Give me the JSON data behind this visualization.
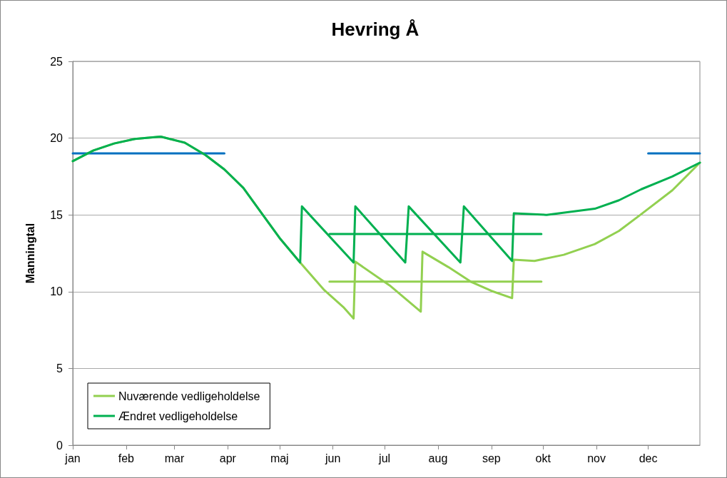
{
  "chart_data": {
    "type": "line",
    "title": "Hevring Å",
    "ylabel": "Manningtal",
    "xlim": [
      "--01-01",
      "--12-31"
    ],
    "xticks": [
      {
        "value": "--01-01",
        "label": "jan"
      },
      {
        "value": "--02-01",
        "label": "feb"
      },
      {
        "value": "--03-01",
        "label": "mar"
      },
      {
        "value": "--04-01",
        "label": "apr"
      },
      {
        "value": "--05-01",
        "label": "maj"
      },
      {
        "value": "--06-01",
        "label": "jun"
      },
      {
        "value": "--07-01",
        "label": "jul"
      },
      {
        "value": "--08-01",
        "label": "aug"
      },
      {
        "value": "--09-01",
        "label": "sep"
      },
      {
        "value": "--10-01",
        "label": "okt"
      },
      {
        "value": "--11-01",
        "label": "nov"
      },
      {
        "value": "--12-01",
        "label": "dec"
      }
    ],
    "ylim": [
      0,
      25
    ],
    "yticks": [
      0,
      5,
      10,
      15,
      20,
      25
    ],
    "grid": "y",
    "legend": "bottom left",
    "marker": "none",
    "line_style": "solid",
    "series": [
      {
        "color": "#0070c0",
        "x": [
          "--01-01",
          "--03-30"
        ],
        "values": [
          19,
          19
        ]
      },
      {
        "color": "#0070c0",
        "x": [
          "--12-01",
          "--12-31"
        ],
        "values": [
          19,
          19
        ]
      },
      {
        "color": "#92d050",
        "x": [
          "--05-30",
          "--09-30"
        ],
        "values": [
          10.65,
          10.65
        ]
      },
      {
        "color": "#00b050",
        "x": [
          "--05-30",
          "--09-30"
        ],
        "values": [
          13.75,
          13.75
        ]
      },
      {
        "name": "Nuværende vedligeholdelse",
        "color": "#92d050",
        "x": [
          "--01-01",
          "--01-13",
          "--01-25",
          "--02-06",
          "--02-21",
          "--03-07",
          "--03-19",
          "--03-30",
          "--04-10",
          "--04-21",
          "--05-01",
          "--05-13",
          "--05-27",
          "--06-07",
          "--06-13",
          "--06-14",
          "--07-04",
          "--07-22",
          "--07-23",
          "--08-07",
          "--08-20",
          "--09-01",
          "--09-13",
          "--09-14",
          "--09-26",
          "--10-13",
          "--10-31",
          "--11-14",
          "--11-27",
          "--12-15",
          "--12-31"
        ],
        "values": [
          18.5,
          19.2,
          19.65,
          19.95,
          20.1,
          19.7,
          18.9,
          17.96,
          16.76,
          15.05,
          13.5,
          11.9,
          10.1,
          9.0,
          8.25,
          11.95,
          10.4,
          8.7,
          12.6,
          11.6,
          10.65,
          10.05,
          9.58,
          12.08,
          12.0,
          12.4,
          13.1,
          13.95,
          15.05,
          16.6,
          18.4
        ]
      },
      {
        "name": "Ændret vedligeholdelse",
        "color": "#00b050",
        "x": [
          "--01-01",
          "--01-13",
          "--01-25",
          "--02-06",
          "--02-21",
          "--03-07",
          "--03-19",
          "--03-30",
          "--04-10",
          "--04-21",
          "--05-01",
          "--05-13",
          "--05-14",
          "--06-13",
          "--06-14",
          "--07-13",
          "--07-15",
          "--08-14",
          "--08-16",
          "--09-13",
          "--09-14",
          "--10-03",
          "--10-31",
          "--11-14",
          "--11-27",
          "--12-15",
          "--12-31"
        ],
        "values": [
          18.5,
          19.2,
          19.65,
          19.95,
          20.1,
          19.7,
          18.9,
          17.96,
          16.76,
          15.05,
          13.5,
          11.9,
          15.55,
          11.9,
          15.55,
          11.9,
          15.55,
          11.9,
          15.55,
          12.0,
          15.1,
          15.0,
          15.4,
          15.95,
          16.67,
          17.5,
          18.4
        ]
      }
    ]
  }
}
